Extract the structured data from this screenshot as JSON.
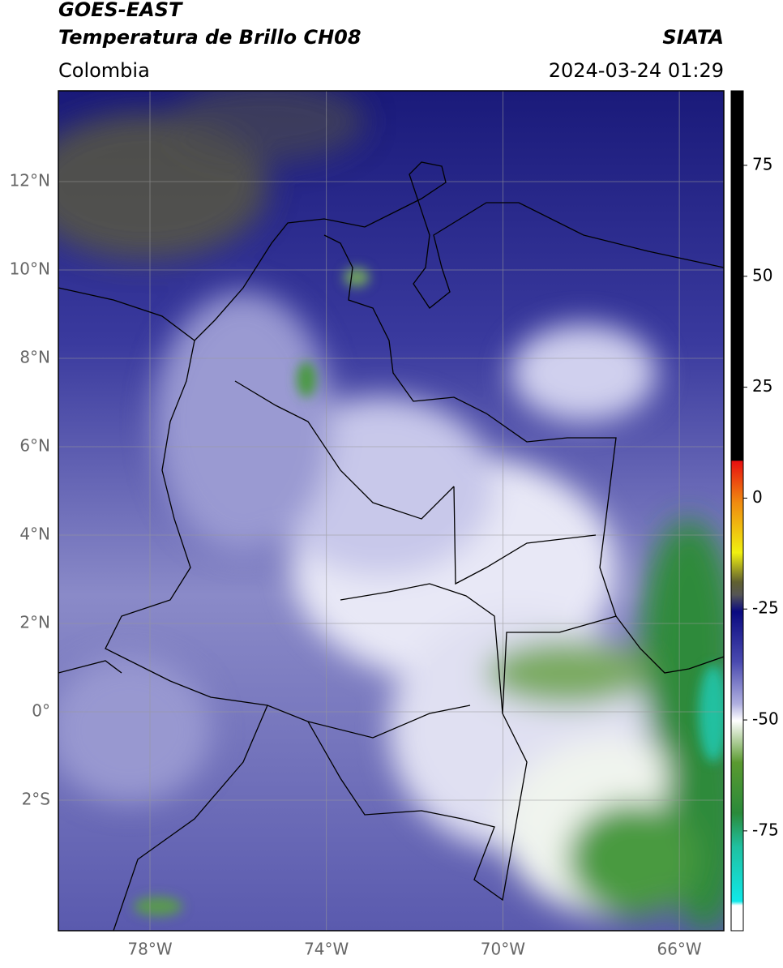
{
  "header": {
    "source": "GOES-EAST",
    "product": "Temperatura de Brillo CH08",
    "agency": "SIATA",
    "region": "Colombia",
    "datetime": "2024-03-24 01:29"
  },
  "map": {
    "lat_labels": [
      "12°N",
      "10°N",
      "8°N",
      "6°N",
      "4°N",
      "2°N",
      "0°",
      "2°S"
    ],
    "lon_labels": [
      "78°W",
      "74°W",
      "70°W",
      "66°W"
    ]
  },
  "colorbar": {
    "lim": [
      -97.5,
      91.8
    ],
    "ticks": [
      75,
      50,
      25,
      0,
      -25,
      -50,
      -75
    ]
  }
}
